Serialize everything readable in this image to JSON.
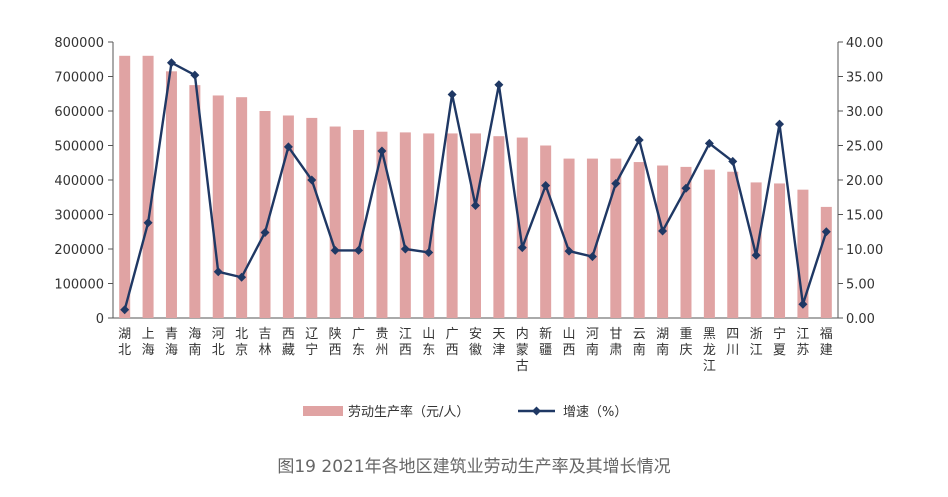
{
  "chart_data": {
    "type": "bar+line",
    "title": "",
    "caption": "图19 2021年各地区建筑业劳动生产率及其增长情况",
    "categories": [
      "湖北",
      "上海",
      "青海",
      "海南",
      "河北",
      "北京",
      "吉林",
      "西藏",
      "辽宁",
      "陕西",
      "广东",
      "贵州",
      "江西",
      "山东",
      "广西",
      "安徽",
      "天津",
      "内蒙古",
      "新疆",
      "山西",
      "河南",
      "甘肃",
      "云南",
      "湖南",
      "重庆",
      "黑龙江",
      "四川",
      "浙江",
      "宁夏",
      "江苏",
      "福建"
    ],
    "series": [
      {
        "name": "劳动生产率（元/人）",
        "type": "bar",
        "axis": "left",
        "values": [
          760000,
          760000,
          715000,
          675000,
          645000,
          640000,
          600000,
          587000,
          580000,
          555000,
          545000,
          540000,
          538000,
          535000,
          535000,
          535000,
          527000,
          523000,
          500000,
          462000,
          462000,
          462000,
          452000,
          442000,
          438000,
          430000,
          424000,
          393000,
          390000,
          372000,
          322000
        ]
      },
      {
        "name": "增速（%）",
        "type": "line",
        "axis": "right",
        "values": [
          1.2,
          13.8,
          37.0,
          35.2,
          6.7,
          5.9,
          12.4,
          24.8,
          20.0,
          9.8,
          9.8,
          24.2,
          10.0,
          9.5,
          32.4,
          16.3,
          33.8,
          10.2,
          19.2,
          9.7,
          8.9,
          19.5,
          25.8,
          12.6,
          18.8,
          25.3,
          22.7,
          9.1,
          28.1,
          2.0,
          12.5
        ]
      }
    ],
    "y_left": {
      "min": 0,
      "max": 800000,
      "ticks": [
        "0",
        "100000",
        "200000",
        "300000",
        "400000",
        "500000",
        "600000",
        "700000",
        "800000"
      ]
    },
    "y_right": {
      "min": 0,
      "max": 40,
      "ticks": [
        "0.00",
        "5.00",
        "10.00",
        "15.00",
        "20.00",
        "25.00",
        "30.00",
        "35.00",
        "40.00"
      ]
    },
    "legend": {
      "position": "bottom",
      "bar_label": "劳动生产率（元/人）",
      "line_label": "增速（%）"
    },
    "colors": {
      "bar": "#E0A3A3",
      "line": "#1F3864",
      "axis": "#555555"
    }
  }
}
